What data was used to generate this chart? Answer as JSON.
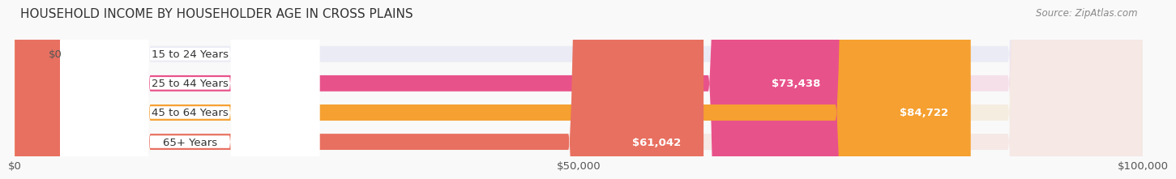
{
  "title": "HOUSEHOLD INCOME BY HOUSEHOLDER AGE IN CROSS PLAINS",
  "source": "Source: ZipAtlas.com",
  "categories": [
    "15 to 24 Years",
    "25 to 44 Years",
    "45 to 64 Years",
    "65+ Years"
  ],
  "values": [
    0,
    73438,
    84722,
    61042
  ],
  "bar_colors": [
    "#a8a8d8",
    "#e8528a",
    "#f5a030",
    "#e87060"
  ],
  "bg_colors": [
    "#ebebf5",
    "#f5e0ea",
    "#f5ede0",
    "#f5e8e5"
  ],
  "value_labels": [
    "$0",
    "$73,438",
    "$84,722",
    "$61,042"
  ],
  "xlim": [
    0,
    100000
  ],
  "xticks": [
    0,
    50000,
    100000
  ],
  "xticklabels": [
    "$0",
    "$50,000",
    "$100,000"
  ],
  "title_fontsize": 11,
  "label_fontsize": 9.5,
  "source_fontsize": 8.5,
  "bar_height": 0.55,
  "background_color": "#f9f9f9"
}
